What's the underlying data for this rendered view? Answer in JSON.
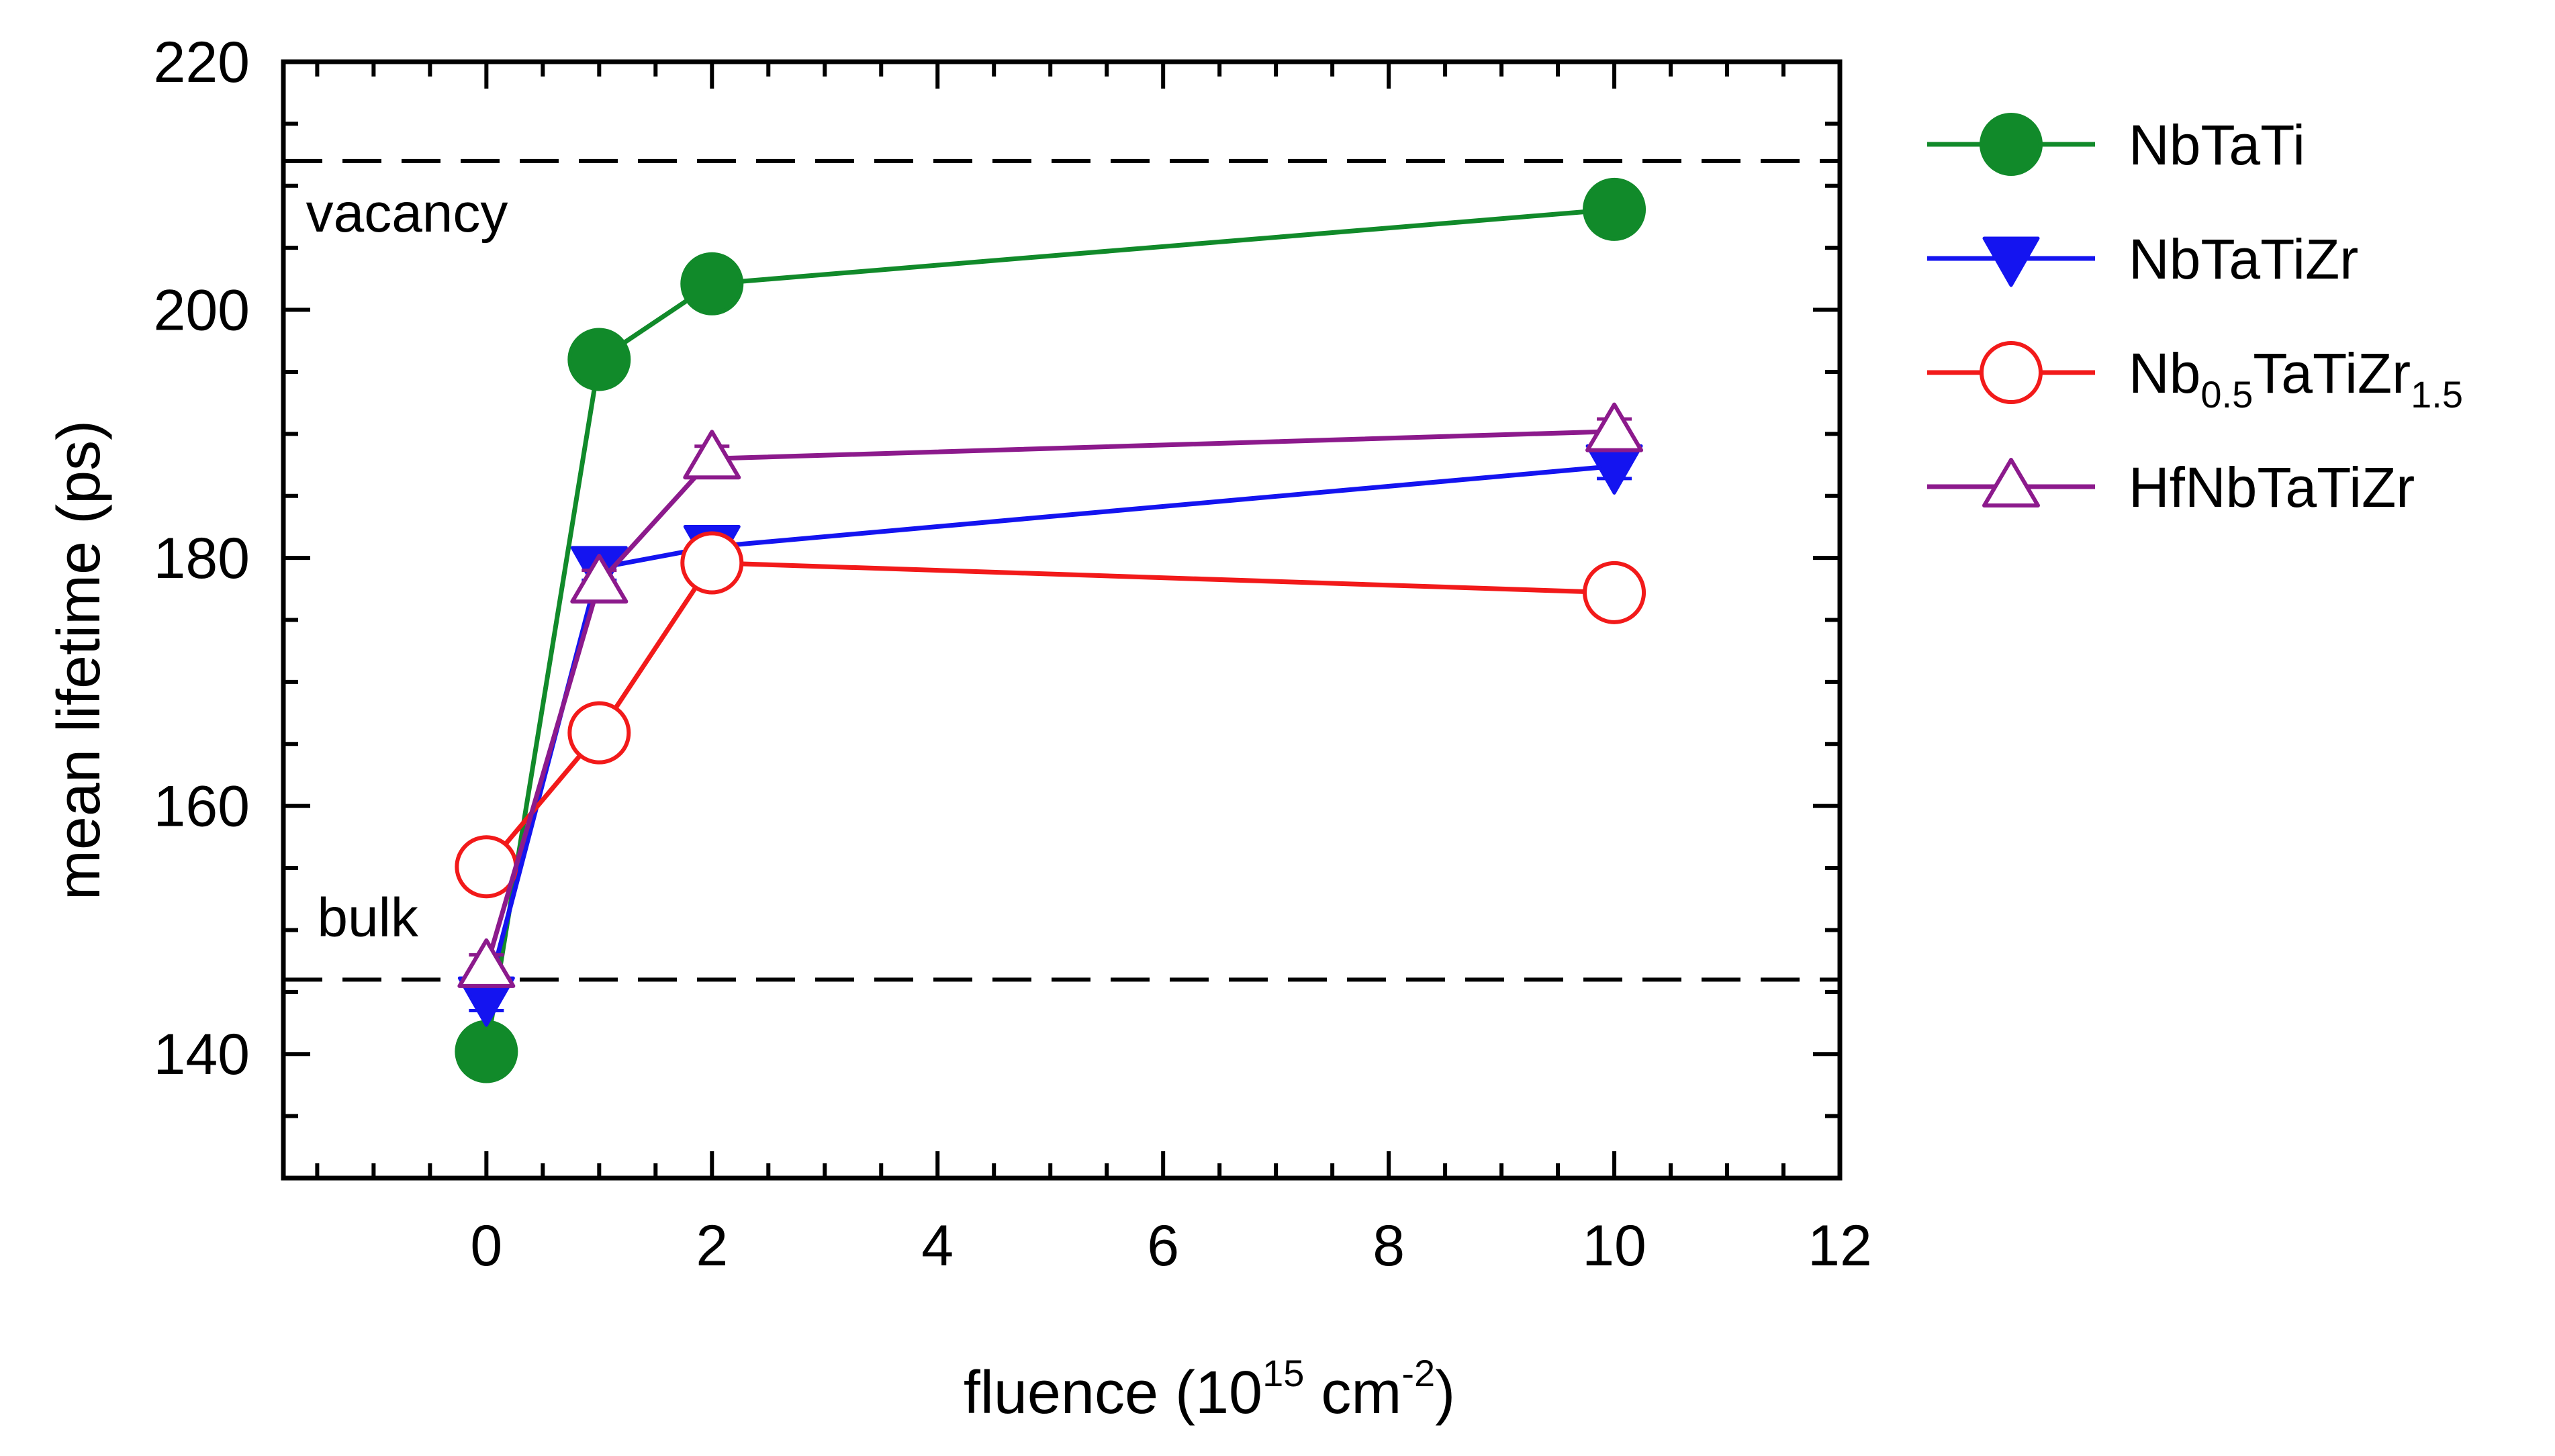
{
  "chart_data": {
    "type": "line",
    "xlabel": {
      "base": "fluence (10",
      "sup1": "15",
      "mid": " cm",
      "sup2": "-2",
      "end": ")"
    },
    "ylabel": "mean lifetime (ps)",
    "xlim": [
      -1.8,
      12
    ],
    "ylim": [
      130,
      220
    ],
    "xticks": [
      0,
      2,
      4,
      6,
      8,
      10,
      12
    ],
    "xtick_labels": [
      "0",
      "2",
      "4",
      "6",
      "8",
      "10",
      "12"
    ],
    "yticks": [
      140,
      160,
      180,
      200,
      220
    ],
    "ytick_labels": [
      "140",
      "160",
      "180",
      "200",
      "220"
    ],
    "x_minor_step": 0.5,
    "y_minor_step": 5,
    "reference_lines": [
      {
        "id": "vacancy",
        "label": "vacancy",
        "value": 212,
        "label_x": -1.6,
        "label_y": 206.3
      },
      {
        "id": "bulk",
        "label": "bulk",
        "value": 146,
        "label_x": -1.5,
        "label_y": 149.5
      }
    ],
    "series": [
      {
        "name": "NbTaTi",
        "parts": [
          {
            "t": "NbTaTi"
          }
        ],
        "color": "#118a2a",
        "marker": "circle-filled",
        "x": [
          0,
          1,
          2,
          10
        ],
        "y": [
          140.2,
          196.0,
          202.1,
          208.1
        ],
        "err": [
          1.0,
          1.0,
          1.0,
          1.0
        ]
      },
      {
        "name": "NbTaTiZr",
        "parts": [
          {
            "t": "NbTaTiZr"
          }
        ],
        "color": "#1414f0",
        "marker": "triangle-down-filled",
        "x": [
          0,
          1,
          2,
          10
        ],
        "y": [
          144.5,
          179.2,
          180.9,
          187.4
        ],
        "err": [
          1.0,
          1.0,
          1.0,
          1.0
        ]
      },
      {
        "name": "Nb0.5TaTiZr1.5",
        "parts": [
          {
            "t": "Nb"
          },
          {
            "t": "0.5",
            "sub": true
          },
          {
            "t": "TaTiZr"
          },
          {
            "t": "1.5",
            "sub": true
          }
        ],
        "color": "#f21a1a",
        "marker": "circle-open",
        "x": [
          0,
          1,
          2,
          10
        ],
        "y": [
          155.1,
          165.9,
          179.6,
          177.2
        ],
        "err": [
          1.0,
          1.0,
          1.0,
          1.0
        ]
      },
      {
        "name": "HfNbTaTiZr",
        "parts": [
          {
            "t": "HfNbTaTiZr"
          }
        ],
        "color": "#8c1a8c",
        "marker": "triangle-up-open",
        "x": [
          0,
          1,
          2,
          10
        ],
        "y": [
          147.0,
          178.0,
          188.0,
          190.2
        ],
        "err": [
          1.0,
          1.0,
          1.0,
          1.0
        ]
      }
    ],
    "legend_position": "outside-right-top"
  }
}
